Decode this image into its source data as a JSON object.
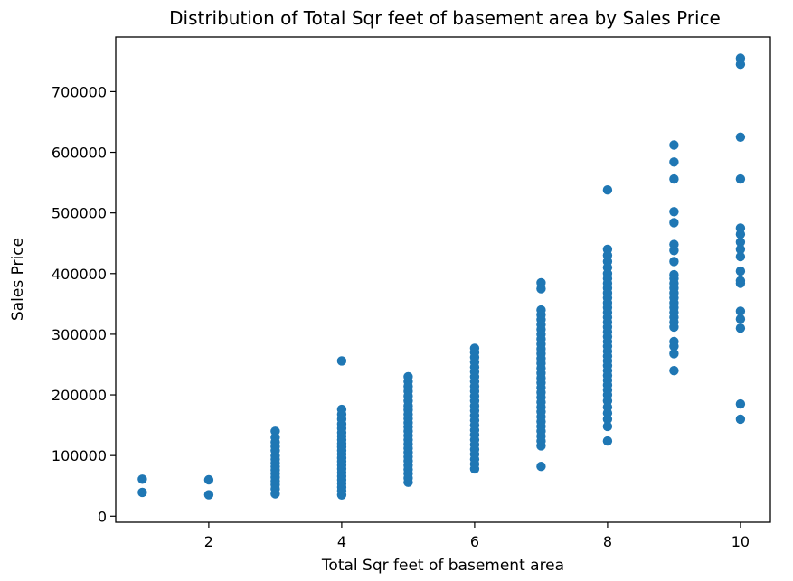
{
  "chart_data": {
    "type": "scatter",
    "title": "Distribution of Total Sqr feet of basement area by Sales Price",
    "xlabel": "Total Sqr feet of basement area",
    "ylabel": "Sales Price",
    "xlim": [
      0.6,
      10.45
    ],
    "ylim": [
      -10000,
      790000
    ],
    "xticks": [
      2,
      4,
      6,
      8,
      10
    ],
    "yticks": [
      0,
      100000,
      200000,
      300000,
      400000,
      500000,
      600000,
      700000
    ],
    "grid": false,
    "marker_color": "#1f77b4",
    "series": [
      {
        "points": [
          [
            1,
            61000
          ],
          [
            1,
            39300
          ],
          [
            2,
            60000
          ],
          [
            2,
            35300
          ],
          [
            3,
            140000
          ],
          [
            3,
            130000
          ],
          [
            3,
            122000
          ],
          [
            3,
            115000
          ],
          [
            3,
            108000
          ],
          [
            3,
            100000
          ],
          [
            3,
            94000
          ],
          [
            3,
            88000
          ],
          [
            3,
            82000
          ],
          [
            3,
            76000
          ],
          [
            3,
            70000
          ],
          [
            3,
            64000
          ],
          [
            3,
            58000
          ],
          [
            3,
            52000
          ],
          [
            3,
            45000
          ],
          [
            3,
            37000
          ],
          [
            4,
            256000
          ],
          [
            4,
            176000
          ],
          [
            4,
            168000
          ],
          [
            4,
            160000
          ],
          [
            4,
            152000
          ],
          [
            4,
            145000
          ],
          [
            4,
            138000
          ],
          [
            4,
            132000
          ],
          [
            4,
            126000
          ],
          [
            4,
            120000
          ],
          [
            4,
            114000
          ],
          [
            4,
            108000
          ],
          [
            4,
            102000
          ],
          [
            4,
            96000
          ],
          [
            4,
            90000
          ],
          [
            4,
            84000
          ],
          [
            4,
            78000
          ],
          [
            4,
            72000
          ],
          [
            4,
            66000
          ],
          [
            4,
            60000
          ],
          [
            4,
            54000
          ],
          [
            4,
            48000
          ],
          [
            4,
            42000
          ],
          [
            4,
            35000
          ],
          [
            5,
            230000
          ],
          [
            5,
            222000
          ],
          [
            5,
            214000
          ],
          [
            5,
            206000
          ],
          [
            5,
            198000
          ],
          [
            5,
            190000
          ],
          [
            5,
            182000
          ],
          [
            5,
            175000
          ],
          [
            5,
            168000
          ],
          [
            5,
            161000
          ],
          [
            5,
            154000
          ],
          [
            5,
            147000
          ],
          [
            5,
            140000
          ],
          [
            5,
            133000
          ],
          [
            5,
            126000
          ],
          [
            5,
            119000
          ],
          [
            5,
            112000
          ],
          [
            5,
            105000
          ],
          [
            5,
            98000
          ],
          [
            5,
            91000
          ],
          [
            5,
            84000
          ],
          [
            5,
            77000
          ],
          [
            5,
            70000
          ],
          [
            5,
            63000
          ],
          [
            5,
            56000
          ],
          [
            6,
            277000
          ],
          [
            6,
            270000
          ],
          [
            6,
            262000
          ],
          [
            6,
            254000
          ],
          [
            6,
            246000
          ],
          [
            6,
            238000
          ],
          [
            6,
            230000
          ],
          [
            6,
            222000
          ],
          [
            6,
            214000
          ],
          [
            6,
            206000
          ],
          [
            6,
            198000
          ],
          [
            6,
            190000
          ],
          [
            6,
            182000
          ],
          [
            6,
            174000
          ],
          [
            6,
            166000
          ],
          [
            6,
            158000
          ],
          [
            6,
            150000
          ],
          [
            6,
            142000
          ],
          [
            6,
            134000
          ],
          [
            6,
            126000
          ],
          [
            6,
            118000
          ],
          [
            6,
            110000
          ],
          [
            6,
            102000
          ],
          [
            6,
            94000
          ],
          [
            6,
            86000
          ],
          [
            6,
            78000
          ],
          [
            7,
            385000
          ],
          [
            7,
            375000
          ],
          [
            7,
            340000
          ],
          [
            7,
            332000
          ],
          [
            7,
            324000
          ],
          [
            7,
            316000
          ],
          [
            7,
            308000
          ],
          [
            7,
            300000
          ],
          [
            7,
            292000
          ],
          [
            7,
            284000
          ],
          [
            7,
            276000
          ],
          [
            7,
            268000
          ],
          [
            7,
            260000
          ],
          [
            7,
            252000
          ],
          [
            7,
            244000
          ],
          [
            7,
            236000
          ],
          [
            7,
            228000
          ],
          [
            7,
            220000
          ],
          [
            7,
            212000
          ],
          [
            7,
            204000
          ],
          [
            7,
            196000
          ],
          [
            7,
            188000
          ],
          [
            7,
            180000
          ],
          [
            7,
            172000
          ],
          [
            7,
            164000
          ],
          [
            7,
            156000
          ],
          [
            7,
            148000
          ],
          [
            7,
            140000
          ],
          [
            7,
            132000
          ],
          [
            7,
            124000
          ],
          [
            7,
            116000
          ],
          [
            7,
            82000
          ],
          [
            8,
            538000
          ],
          [
            8,
            440000
          ],
          [
            8,
            430000
          ],
          [
            8,
            420000
          ],
          [
            8,
            410000
          ],
          [
            8,
            400000
          ],
          [
            8,
            392000
          ],
          [
            8,
            384000
          ],
          [
            8,
            376000
          ],
          [
            8,
            368000
          ],
          [
            8,
            360000
          ],
          [
            8,
            352000
          ],
          [
            8,
            344000
          ],
          [
            8,
            336000
          ],
          [
            8,
            328000
          ],
          [
            8,
            320000
          ],
          [
            8,
            312000
          ],
          [
            8,
            304000
          ],
          [
            8,
            296000
          ],
          [
            8,
            288000
          ],
          [
            8,
            280000
          ],
          [
            8,
            272000
          ],
          [
            8,
            264000
          ],
          [
            8,
            256000
          ],
          [
            8,
            248000
          ],
          [
            8,
            240000
          ],
          [
            8,
            232000
          ],
          [
            8,
            224000
          ],
          [
            8,
            216000
          ],
          [
            8,
            208000
          ],
          [
            8,
            200000
          ],
          [
            8,
            190000
          ],
          [
            8,
            180000
          ],
          [
            8,
            170000
          ],
          [
            8,
            160000
          ],
          [
            8,
            148000
          ],
          [
            8,
            124000
          ],
          [
            9,
            612000
          ],
          [
            9,
            584000
          ],
          [
            9,
            556000
          ],
          [
            9,
            502000
          ],
          [
            9,
            484000
          ],
          [
            9,
            448000
          ],
          [
            9,
            438000
          ],
          [
            9,
            420000
          ],
          [
            9,
            398000
          ],
          [
            9,
            392000
          ],
          [
            9,
            384000
          ],
          [
            9,
            376000
          ],
          [
            9,
            368000
          ],
          [
            9,
            360000
          ],
          [
            9,
            352000
          ],
          [
            9,
            344000
          ],
          [
            9,
            336000
          ],
          [
            9,
            328000
          ],
          [
            9,
            320000
          ],
          [
            9,
            312000
          ],
          [
            9,
            288000
          ],
          [
            9,
            280000
          ],
          [
            9,
            268000
          ],
          [
            9,
            240000
          ],
          [
            10,
            755000
          ],
          [
            10,
            745000
          ],
          [
            10,
            625000
          ],
          [
            10,
            556000
          ],
          [
            10,
            475000
          ],
          [
            10,
            465000
          ],
          [
            10,
            452000
          ],
          [
            10,
            440000
          ],
          [
            10,
            428000
          ],
          [
            10,
            404000
          ],
          [
            10,
            388000
          ],
          [
            10,
            384000
          ],
          [
            10,
            338000
          ],
          [
            10,
            325000
          ],
          [
            10,
            310000
          ],
          [
            10,
            185000
          ],
          [
            10,
            160000
          ]
        ]
      }
    ]
  }
}
